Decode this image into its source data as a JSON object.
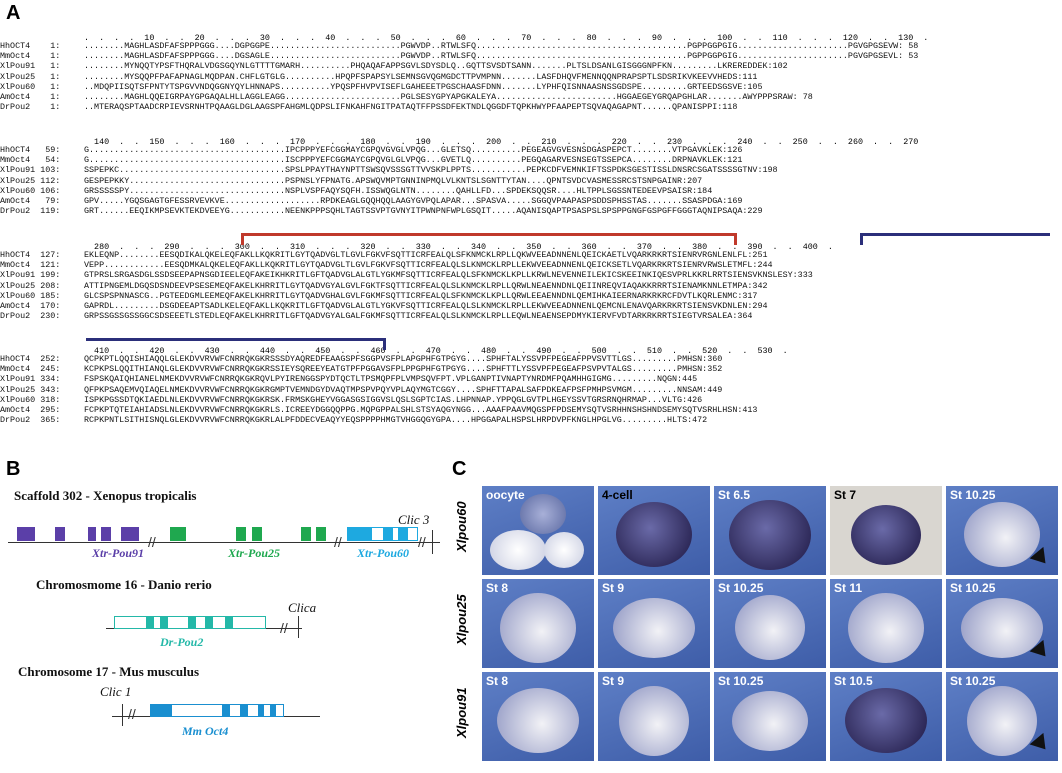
{
  "panels": {
    "a": "A",
    "b": "B",
    "c": "C"
  },
  "alignment": {
    "ruler1": ".  .  .  .  10  .  .  20  .  .  .  30  .  .  .  40  .  .  .  50  .  .  .  60  .  .  .  70  .  .  .  80  .  .  .  90  .  .  .  100  .  .  110  .  .  .  120  .  .  130  .",
    "ruler2": "  140  .  .  150  .  .  .  160  .  .  .  170  .  .  .  180  .  .  190  .  .  .  200  .  .  210  .  .  .  220  .  .  230  .  .  .  240  .  .  250  .  .  260  .  .  270",
    "ruler3": "  280  .  .  .  290  .  .  .  300  .  .  310  .  .  .  320  .  .  330  .  .  340  .  .  350  .  .  360  .  .  370  .  .  380  .  .  390  .  .  400  .",
    "ruler4": "  410  .  .  420  .  .  430  .  .  440  .  .  450  .  .  460  .  .  470  .  .  480  .  .  490  .  .  500  .  .  510  .  .  520  .  .  530  .",
    "blocks": [
      [
        {
          "label": "HhOCT4    1:",
          "seq": "........MAGHLASDFAFSPPPGGG....DGPGGPE..........................PGWVDP..RTWLSFQ..........................................PGPPGGPGIG......................PGVGPGSEVW: 58"
        },
        {
          "label": "MmOct4    1:",
          "seq": "........MAGHLASDFAFSPPPGGG....DGSAGLE..........................PGWVDP..RTWLSFQ..........................................PGPPGGPGIG......................PGVGPGSEVL: 53"
        },
        {
          "label": "XlPou91   1:",
          "seq": "........MYNQQTYPSFTHQRALVDGSGQYNLGTTTTGMARH..........PHQAQAFAPPSGVLSDYSDLQ..GQTTSVSDTSANN.......PLTSLDSANLGISGGGNPFKN.........LKREREDDEK:102"
        },
        {
          "label": "XlPou25   1:",
          "seq": "........MYSQQPFPAFAPNAGLMQDPAN.CHFLGTGLG..........HPQPFSPAPSYLSEMNSGVQGMGDCTTPVMPNN.......LASFDHQVFMENNQQNPRAPSPTLSDSRIKVKEEVVHEDS:111"
        },
        {
          "label": "XlPou60   1:",
          "seq": "..MDQPIISQTSFPNTYTSPGVVNDQGGNYQYLHNNAPS..........YPQSPFHVPVISEFLGAHEEETPGSCHAASFDNN.......LYPHFQISNNAASNSSGDSPE.........GRTEEDSGSVE:105"
        },
        {
          "label": "AmOct4    1:",
          "seq": "........MAGHLQQEIGRPAYGPGAQALHLLAGGLEAGG.......................PGLSESYGPYAPGKALEYA........................HGGAEGEYGRQAPGHLAR.......AWYPPPSRAW: 78"
        },
        {
          "label": "DrPou2    1:",
          "seq": "..MTERAQSPTAADCRPIEVSRNHTPQAAGLDGLAAGSPFAHGMLQDPSLIFNKAHFNGITPATAQTFFPSSDFEKTNDLQGGDFTQPKHWYPFAAPEPTSQVAQAGAPNT......QPANISPPI:118"
        }
      ],
      [
        {
          "label": "HhOCT4   59:",
          "seq": "G.......................................IPCPPPYEFCGGMAYCGPQVGVGLVPQG...GLETSQ..........PEGEAGVGVESNSDGASPEPCT........VTPGAVKLEK:126"
        },
        {
          "label": "MmOct4   54:",
          "seq": "G.......................................ISCPPPYEFCGGMAYCGPQVGLGLVPQG...GVETLQ..........PEGQAGARVESNSEGTSSEPCA........DRPNAVKLEK:121"
        },
        {
          "label": "XlPou91 103:",
          "seq": "SSPEPKC.................................SPSLPPAYTHAYNPTTSWSQVSSSGTTVVSKPLPPTS...........PEPKCDFVEMNKIFTSSPDKSGESTISSLDNSRCSGATSSSSGTNV:198"
        },
        {
          "label": "XlPou25 112:",
          "seq": "GESPEPKKY...............................PSPNSLYFPNATG.APSWQVMPTGNNINPMQLVLKNTSLSGNTTYTAN....QPNTSVDCVASMESSRCSTSNPGAINR:207"
        },
        {
          "label": "XlPou60 106:",
          "seq": "GRSSSSSPY...............................NSPLVSPFAQYSQFH.ISSWQGLNTN........QAHLLFD...SPDEKSQQSR....HLTPPLSGSSNTEDEEVPSAISR:184"
        },
        {
          "label": "AmOct4   79:",
          "seq": "GPV.....YGQSGAGTGFESSRVEVKVE...................RPDKEAGLGQQHQQLAAGYGVPQLAPAR...SPASVA.....SGGQVPAAPASPSDDSPHSSTAS.......SSASPDGA:169"
        },
        {
          "label": "DrPou2  119:",
          "seq": "GRT......EEQIKMPSEVKTEKDVEEYG...........NEENKPPPSQHLTAGTSSVPTGVNYITPWNPNFWPLGSQIT.....AQANISQAPTPSASPSLSPSPPGNGFGSPGFFGGGTAQNIPSAQA:229"
        }
      ],
      [
        {
          "label": "HhOCT4  127:",
          "seq": "EKLEQNP........EESQDIKALQKELEQFAKLLKQKRITLGYTQADVGLTLGVLFGKVFSQTTICRFEALQLSFKNMCKLRPLLQKWVEEADNNENLQEICKAETLVQARKRKRTSIENRVRGNLENLFL:251"
        },
        {
          "label": "MmOct4  121:",
          "seq": "VEPP............EESQDMKALQKELEQFAKLLKQKRITLGYTQADVGLTLGVLFGKVFSQTTICRFEALQLSLKNMCKLRPLLEKWVEEADNNENLQEICKSETLVQARKRKRTSIENRVRWSLETMFL:244"
        },
        {
          "label": "XlPou91 199:",
          "seq": "GTPRSLSRGASDGLSSDSEEPAPNSGDIEELEQFAKEIKHKRITLGFTQADVGLALGTLYGKMFSQTTICRFEALQLSFKNMCKLKPLLKRWLNEVENNEILEKICSKEEINKIQESVPRLKKRLRRTSIENSVKNSLESY:333"
        },
        {
          "label": "XlPou25 208:",
          "seq": "ATTIPNGEMLDGQSDSNDEEVPSESEMEQFAKELKHRRITLGYTQADVGYALGVLFGKTFSQTTICRFEALQLSLKNMCKLRPLLQRWLNEAENNDNLQEIINREQVIAQAKKRRRTSIENAMKNNLETMPA:342"
        },
        {
          "label": "XlPou60 185:",
          "seq": "GLCSPSPNNASCG..PGTEEDGMLEEMEQFAKELKHRRITLGYTQADVGHALGVLFGKMFSQTTICRFEALQLSFKNMCKLKPLLQRWLEEAENNDNLQEMIHKAIEERNARKRKRCFDVTLKQRLENMC:317"
        },
        {
          "label": "AmOct4  170:",
          "seq": "GAPRDL.........DSGDEEAPTSADLKELEQFAKLLKQKRITLGFTQADVGLALGTLYGKVFSQTTICRFEALQLSLKNMCKLRPLLEKWVEEADNNENLQEMCNLENAVQARKRKRTSIENSVKDNLEN:294"
        },
        {
          "label": "DrPou2  230:",
          "seq": "GRPSSGSSGSSGGCSDSEEETLSTEDLEQFAKELKHRRITLGFTQADVGYALGALFGKMFSQTTICRFEALQLSLKNMCKLRPLLEQWLNEAENSEPDMYKIERVFVDTARKRKRRTSIEGTVRSALEA:364"
        }
      ],
      [
        {
          "label": "HhOCT4  252:",
          "seq": "QCPKPTLQQISHIAQQLGLEKDVVRVWFCNRRQKGKRSSSDYAQREDFEAAGSPFSGGPVSFPLAPGPHFGTPGYG....SPHFTALYSSVPFPEGEAFPPVSVTTLGS.........PMHSN:360"
        },
        {
          "label": "MmOct4  245:",
          "seq": "KCPKPSLQQITHIANQLGLEKDVVRVWFCNRRQKGKRSSIEYSQREEYEATGTPFPGGAVSFPLPPGPHFGTPGYG....SPHFTTLYSSVPFPEGEAFPSVPVTALGS.........PMHSN:352"
        },
        {
          "label": "XlPou91 334:",
          "seq": "FSPSKQAIQHIANELNMEKDVVRVWFCNRRQKGKRQVLPYIRENGGSPYDTQCTLTPSMQPFPLVMPSQVFPT.VPLGANPTIVNAPTYNRDMFPQAMHHGIGMG.........NQGN:445"
        },
        {
          "label": "XlPou25 343:",
          "seq": "QFPKPSAQEMVQIAQELNMEKDVVRVWFCNRRQKGKRGMPTVEMNDGYDVAQTMPSPVPQYVPLAQYMGTCGGY....SPHFTTAPALSAFPDKEAFPSFPMHPSVMGM.........NNSAM:449"
        },
        {
          "label": "XlPou60 318:",
          "seq": "ISPKPGSSDTQKIAEDLNLEKDVVRVWFCNRRQKGKRSK.FRMSKGHEYVGGASGSIGGVSLQSLSGPTCIAS.LHPNNAP.YPPQGLGVTPLHGEYSSVTGRSRNQHRMAP...VLTG:426"
        },
        {
          "label": "AmOct4  295:",
          "seq": "FCPKPTQTEIAHIADSLNLEKDVVRVWFCNRRQKGKRLS.ICREEYDGGQQPPG.MQPGPPALSHLSTSYAQGYNGG...AAAFPAAVMQGSPFPDSEMYSQTVSRHHNSHSHNDSEMYSQTVSRHLHSN:413"
        },
        {
          "label": "DrPou2  365:",
          "seq": "RCPKPNTLSITHISNQLGLEKDVVRVWFCNRRQKGKRLALPFDDECVEAQYYEQSPPPPHMGTVHGGQGYGPA....HPGGAPALHSPSLHRPDVPFKNGLHPGLVG.........HLTS:472"
        }
      ]
    ]
  },
  "schema": {
    "scaffold_title": "Scaffold 302 - Xenopus tropicalis",
    "danio_title": "Chromosmome 16 - Danio rerio",
    "mus_title": "Chromosome 17 - Mus musculus",
    "clic3": "Clic 3",
    "clica": "Clica",
    "clic1": "Clic 1",
    "genes": {
      "xtr_pou91": "Xtr-Pou91",
      "xtr_pou25": "Xtr-Pou25",
      "xtr_pou60": "Xtr-Pou60",
      "dr_pou2": "Dr-Pou2",
      "mm_oct4": "Mm Oct4"
    },
    "colors": {
      "pou91": "#5b3fa8",
      "pou25": "#1fa84f",
      "pou60": "#1ea9e0",
      "drpou2": "#24b8a8",
      "mmoct4": "#1a8fd0"
    }
  },
  "insitu": {
    "row_labels": [
      "Xlpou60",
      "Xlpou25",
      "Xlpou91"
    ],
    "rows": [
      [
        "oocyte",
        "4-cell",
        "St 6.5",
        "St 7",
        "St 10.25"
      ],
      [
        "St 8",
        "St 9",
        "St 10.25",
        "St 11",
        "St 10.25"
      ],
      [
        "St 8",
        "St 9",
        "St 10.25",
        "St 10.5",
        "St 10.25"
      ]
    ]
  }
}
